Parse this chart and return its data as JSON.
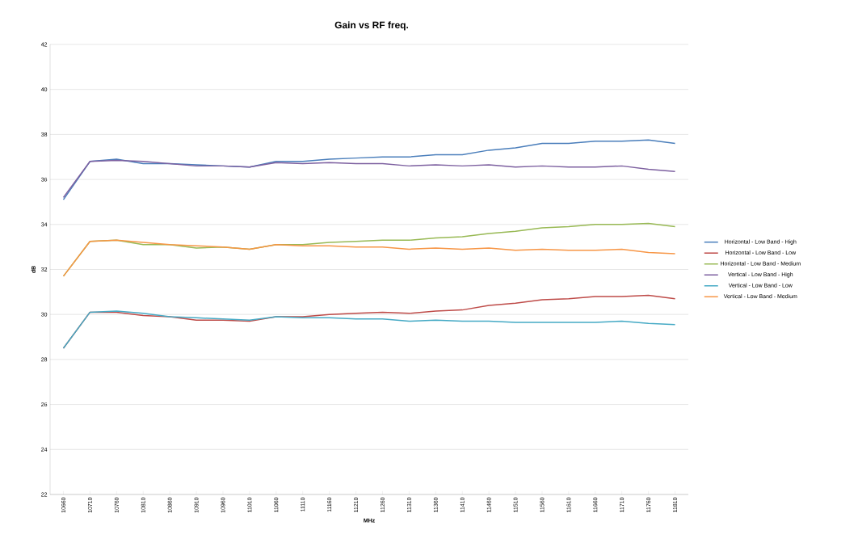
{
  "chart_data": {
    "type": "line",
    "title": "Gain vs RF freq.",
    "xlabel": "MHz",
    "ylabel": "dB",
    "categories": [
      "10660",
      "10710",
      "10760",
      "10810",
      "10860",
      "10910",
      "10960",
      "11010",
      "11060",
      "11110",
      "11160",
      "11210",
      "11260",
      "11310",
      "11360",
      "11410",
      "11460",
      "11510",
      "11560",
      "11610",
      "11660",
      "11710",
      "11760",
      "11810"
    ],
    "series": [
      {
        "name": "Horizontal - Low Band - High",
        "color": "#4a7ebb",
        "values": [
          35.1,
          36.8,
          36.9,
          36.7,
          36.7,
          36.65,
          36.6,
          36.55,
          36.8,
          36.8,
          36.9,
          36.95,
          37.0,
          37.0,
          37.1,
          37.1,
          37.3,
          37.4,
          37.6,
          37.6,
          37.7,
          37.7,
          37.75,
          37.6
        ]
      },
      {
        "name": "Horizontal - Low Band - Low",
        "color": "#be4b48",
        "values": [
          28.5,
          30.1,
          30.1,
          29.95,
          29.9,
          29.75,
          29.75,
          29.7,
          29.9,
          29.9,
          30.0,
          30.05,
          30.1,
          30.05,
          30.15,
          30.2,
          30.4,
          30.5,
          30.65,
          30.7,
          30.8,
          30.8,
          30.85,
          30.7
        ]
      },
      {
        "name": "Horizontal - Low Band - Medium",
        "color": "#98b954",
        "values": [
          31.7,
          33.25,
          33.3,
          33.1,
          33.1,
          32.95,
          33.0,
          32.9,
          33.1,
          33.1,
          33.2,
          33.25,
          33.3,
          33.3,
          33.4,
          33.45,
          33.6,
          33.7,
          33.85,
          33.9,
          34.0,
          34.0,
          34.05,
          33.9
        ]
      },
      {
        "name": "Vertical - Low Band - High",
        "color": "#7d60a0",
        "values": [
          35.2,
          36.8,
          36.85,
          36.8,
          36.7,
          36.6,
          36.6,
          36.55,
          36.75,
          36.7,
          36.75,
          36.7,
          36.7,
          36.6,
          36.65,
          36.6,
          36.65,
          36.55,
          36.6,
          36.55,
          36.55,
          36.6,
          36.45,
          36.35
        ]
      },
      {
        "name": "Vertical - Low Band - Low",
        "color": "#46aac5",
        "values": [
          28.5,
          30.1,
          30.15,
          30.05,
          29.9,
          29.85,
          29.8,
          29.75,
          29.9,
          29.85,
          29.85,
          29.8,
          29.8,
          29.7,
          29.75,
          29.7,
          29.7,
          29.65,
          29.65,
          29.65,
          29.65,
          29.7,
          29.6,
          29.55
        ]
      },
      {
        "name": "Vertical - Low Band - Medium",
        "color": "#f79646",
        "values": [
          31.7,
          33.25,
          33.3,
          33.2,
          33.1,
          33.05,
          33.0,
          32.9,
          33.1,
          33.05,
          33.05,
          33.0,
          33.0,
          32.9,
          32.95,
          32.9,
          32.95,
          32.85,
          32.9,
          32.85,
          32.85,
          32.9,
          32.75,
          32.7
        ]
      }
    ],
    "ylim": [
      22,
      42
    ],
    "yticks": [
      22,
      24,
      26,
      28,
      30,
      32,
      34,
      36,
      38,
      40,
      42
    ],
    "grid": "y",
    "legend": "right",
    "marker": "none",
    "line_style": "solid"
  }
}
